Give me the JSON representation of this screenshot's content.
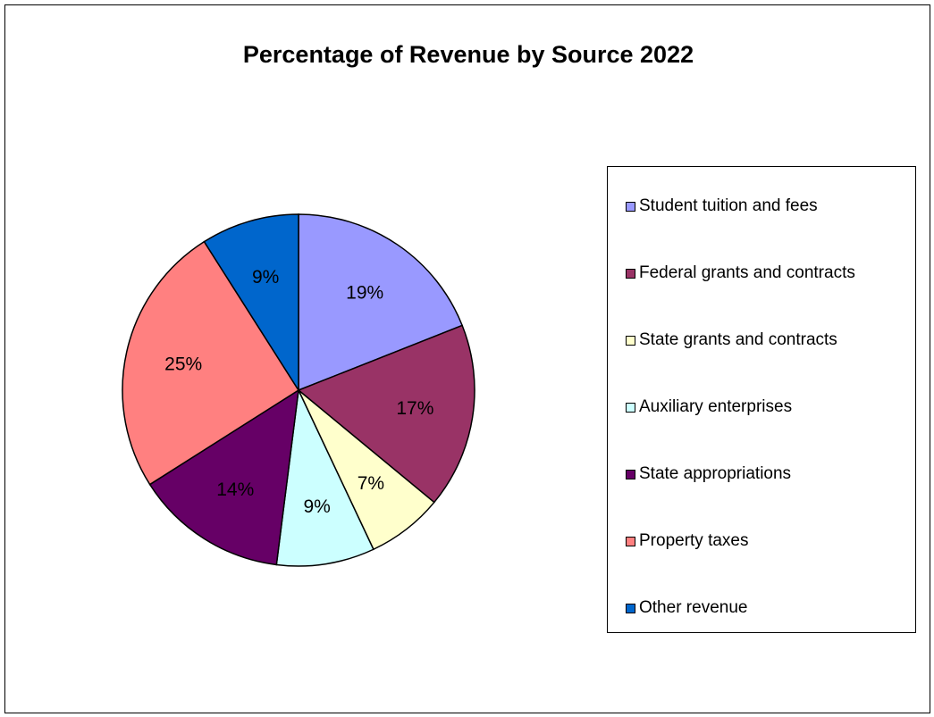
{
  "chart_data": {
    "type": "pie",
    "title": "Percentage of Revenue by Source 2022",
    "legend_position": "right",
    "slices": [
      {
        "label": "Student tuition and fees",
        "value": 19,
        "text": "19%",
        "color": "#9999ff"
      },
      {
        "label": "Federal grants and contracts",
        "value": 17,
        "text": "17%",
        "color": "#993366"
      },
      {
        "label": "State grants and contracts",
        "value": 7,
        "text": "7%",
        "color": "#ffffcc"
      },
      {
        "label": "Auxiliary enterprises",
        "value": 9,
        "text": "9%",
        "color": "#ccffff"
      },
      {
        "label": "State appropriations",
        "value": 14,
        "text": "14%",
        "color": "#660066"
      },
      {
        "label": "Property taxes",
        "value": 25,
        "text": "25%",
        "color": "#ff8080"
      },
      {
        "label": "Other revenue",
        "value": 9,
        "text": "9%",
        "color": "#0066cc"
      }
    ]
  }
}
